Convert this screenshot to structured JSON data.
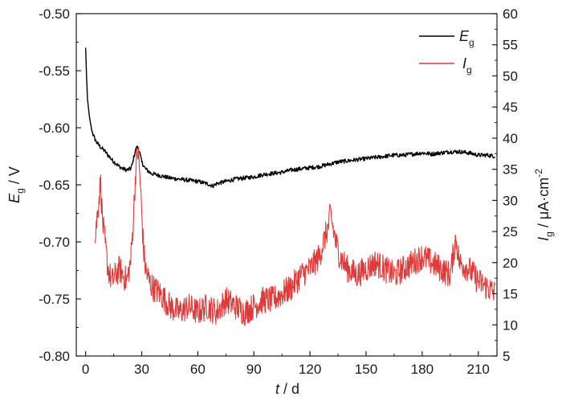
{
  "chart_data": {
    "type": "line",
    "x_axis": {
      "label_var": "t",
      "label_unit": " / d",
      "range": [
        -5,
        220
      ],
      "ticks": [
        0,
        30,
        60,
        90,
        120,
        150,
        180,
        210
      ],
      "tick_labels": [
        "0",
        "30",
        "60",
        "90",
        "120",
        "150",
        "180",
        "210"
      ]
    },
    "y_left": {
      "label_var": "E",
      "label_sub": "g",
      "label_unit": " / V",
      "range": [
        -0.8,
        -0.5
      ],
      "ticks": [
        -0.8,
        -0.75,
        -0.7,
        -0.65,
        -0.6,
        -0.55,
        -0.5
      ],
      "tick_labels": [
        "-0.80",
        "-0.75",
        "-0.70",
        "-0.65",
        "-0.60",
        "-0.55",
        "-0.50"
      ]
    },
    "y_right": {
      "label_var": "I",
      "label_sub": "g",
      "label_unit": " / μA·cm",
      "label_sup": "-2",
      "range": [
        5,
        60
      ],
      "ticks": [
        5,
        10,
        15,
        20,
        25,
        30,
        35,
        40,
        45,
        50,
        55,
        60
      ],
      "tick_labels": [
        "5",
        "10",
        "15",
        "20",
        "25",
        "30",
        "35",
        "40",
        "45",
        "50",
        "55",
        "60"
      ]
    },
    "series": [
      {
        "name_var": "E",
        "name_sub": "g",
        "axis": "left",
        "color": "#000000",
        "x": [
          0,
          0.5,
          1,
          2,
          3,
          4,
          5,
          6,
          8,
          10,
          12,
          14,
          16,
          18,
          20,
          22,
          24,
          25,
          26,
          27,
          28,
          29,
          30,
          32,
          35,
          40,
          45,
          50,
          55,
          60,
          65,
          68,
          70,
          75,
          80,
          85,
          90,
          95,
          100,
          105,
          110,
          115,
          120,
          125,
          130,
          135,
          140,
          145,
          150,
          155,
          160,
          165,
          170,
          175,
          180,
          185,
          190,
          195,
          200,
          205,
          210,
          215,
          219
        ],
        "y": [
          -0.53,
          -0.555,
          -0.575,
          -0.59,
          -0.6,
          -0.606,
          -0.61,
          -0.613,
          -0.617,
          -0.62,
          -0.624,
          -0.628,
          -0.631,
          -0.634,
          -0.636,
          -0.637,
          -0.636,
          -0.632,
          -0.624,
          -0.618,
          -0.617,
          -0.622,
          -0.63,
          -0.636,
          -0.64,
          -0.642,
          -0.644,
          -0.645,
          -0.646,
          -0.647,
          -0.649,
          -0.651,
          -0.649,
          -0.647,
          -0.645,
          -0.644,
          -0.643,
          -0.641,
          -0.64,
          -0.639,
          -0.637,
          -0.636,
          -0.635,
          -0.634,
          -0.632,
          -0.63,
          -0.629,
          -0.628,
          -0.627,
          -0.626,
          -0.625,
          -0.624,
          -0.624,
          -0.623,
          -0.622,
          -0.623,
          -0.622,
          -0.621,
          -0.621,
          -0.622,
          -0.624,
          -0.624,
          -0.625
        ]
      },
      {
        "name_var": "I",
        "name_sub": "g",
        "axis": "right",
        "color": "#e03a3a",
        "x": [
          5,
          6,
          7,
          8,
          9,
          10,
          12,
          14,
          16,
          18,
          20,
          22,
          24,
          25,
          26,
          27,
          28,
          29,
          30,
          31,
          32,
          34,
          36,
          40,
          45,
          50,
          55,
          60,
          65,
          70,
          75,
          80,
          85,
          90,
          95,
          100,
          105,
          110,
          115,
          120,
          125,
          128,
          130,
          131,
          132,
          134,
          136,
          140,
          145,
          150,
          155,
          160,
          165,
          170,
          175,
          180,
          185,
          190,
          195,
          198,
          200,
          205,
          210,
          215,
          219
        ],
        "y": [
          23,
          27,
          30,
          33,
          27,
          24,
          19,
          17,
          18,
          19,
          18,
          17,
          20,
          24,
          30,
          36,
          38,
          34,
          28,
          22,
          19,
          17,
          16,
          15,
          13,
          12,
          13,
          12,
          13,
          12,
          14,
          13,
          12,
          13,
          14,
          14,
          15,
          16,
          18,
          19,
          21,
          24,
          26,
          28,
          26,
          23,
          21,
          19,
          18,
          19,
          20,
          19,
          18,
          19,
          20,
          21,
          20,
          19,
          18,
          24,
          20,
          19,
          17,
          16,
          15
        ]
      }
    ],
    "legend_position": "top-right",
    "grid": false
  }
}
